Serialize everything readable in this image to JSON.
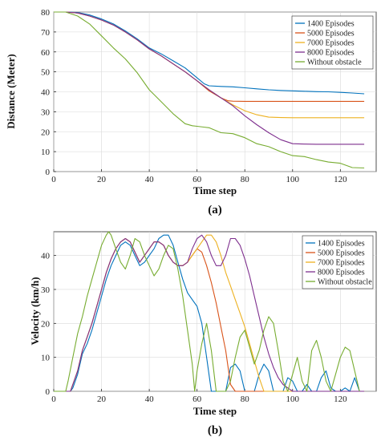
{
  "figure": {
    "caption_a": "(a)",
    "caption_b": "(b)"
  },
  "chart_data": [
    {
      "type": "line",
      "title": "",
      "xlabel": "Time step",
      "ylabel": "Distance (Meter)",
      "xlim": [
        0,
        135
      ],
      "ylim": [
        0,
        80
      ],
      "xticks": [
        0,
        20,
        40,
        60,
        80,
        100,
        120
      ],
      "yticks": [
        0,
        10,
        20,
        30,
        40,
        50,
        60,
        70,
        80
      ],
      "grid": true,
      "legend_position": "top-right",
      "series": [
        {
          "name": "1400 Episodes",
          "color": "#0072BD",
          "x": [
            0,
            5,
            10,
            15,
            20,
            25,
            30,
            35,
            40,
            45,
            50,
            55,
            60,
            63,
            65,
            70,
            75,
            80,
            85,
            90,
            95,
            100,
            105,
            110,
            115,
            120,
            125,
            130
          ],
          "y": [
            80,
            80,
            79.8,
            78.5,
            76.5,
            74,
            70.5,
            66.5,
            62,
            59,
            55.5,
            52,
            47,
            44,
            43,
            42.7,
            42.5,
            42,
            41.5,
            41,
            40.7,
            40.5,
            40.3,
            40.1,
            40,
            39.7,
            39.4,
            39
          ]
        },
        {
          "name": "5000 Episodes",
          "color": "#D95319",
          "x": [
            0,
            5,
            10,
            15,
            20,
            25,
            30,
            35,
            40,
            45,
            50,
            55,
            60,
            65,
            70,
            73,
            75,
            80,
            90,
            100,
            110,
            120,
            130
          ],
          "y": [
            80,
            80,
            79.5,
            78,
            76,
            73.5,
            70,
            66,
            61.5,
            58,
            54,
            50,
            45.5,
            40.5,
            37,
            35.5,
            35.3,
            35.2,
            35.2,
            35.2,
            35.2,
            35.2,
            35.2
          ]
        },
        {
          "name": "7000 Episodes",
          "color": "#EDB120",
          "x": [
            0,
            5,
            10,
            15,
            20,
            25,
            30,
            35,
            40,
            45,
            50,
            55,
            60,
            65,
            70,
            75,
            80,
            85,
            90,
            95,
            100,
            110,
            120,
            130
          ],
          "y": [
            80,
            80,
            79.5,
            78,
            76,
            73.5,
            70,
            66,
            61.5,
            58,
            54,
            50,
            45.5,
            41,
            37,
            33.5,
            30.5,
            28.5,
            27.3,
            27.1,
            27,
            27,
            27,
            27
          ]
        },
        {
          "name": "8000 Episodes",
          "color": "#7E2F8E",
          "x": [
            0,
            5,
            10,
            15,
            20,
            25,
            30,
            35,
            40,
            45,
            50,
            55,
            60,
            65,
            70,
            75,
            80,
            85,
            90,
            95,
            100,
            105,
            110,
            120,
            130
          ],
          "y": [
            80,
            80,
            79.5,
            78,
            76,
            73.5,
            70,
            66,
            61.5,
            58,
            54,
            50,
            45.5,
            41,
            37,
            33,
            28,
            23.5,
            19.5,
            16,
            14,
            13.8,
            13.7,
            13.7,
            13.7
          ]
        },
        {
          "name": "Without obstacle",
          "color": "#77AC30",
          "x": [
            0,
            5,
            10,
            15,
            20,
            25,
            30,
            35,
            40,
            45,
            50,
            55,
            58,
            60,
            65,
            70,
            75,
            80,
            85,
            90,
            95,
            100,
            105,
            110,
            115,
            120,
            125,
            130
          ],
          "y": [
            80,
            80,
            78,
            74,
            68,
            62,
            56.5,
            49.5,
            41,
            35,
            29,
            24,
            23,
            22.7,
            22,
            19.5,
            19,
            17,
            14,
            12.5,
            10,
            8,
            7.5,
            6,
            4.8,
            4.2,
            2,
            1.8
          ]
        }
      ]
    },
    {
      "type": "line",
      "title": "",
      "xlabel": "Time step",
      "ylabel": "Velocity (km/h)",
      "xlim": [
        0,
        135
      ],
      "ylim": [
        0,
        47
      ],
      "xticks": [
        0,
        20,
        40,
        60,
        80,
        100,
        120
      ],
      "yticks": [
        0,
        10,
        20,
        30,
        40
      ],
      "grid": true,
      "legend_position": "top-right",
      "series": [
        {
          "name": "1400 Episodes",
          "color": "#0072BD",
          "x": [
            0,
            6,
            7,
            8,
            10,
            12,
            14,
            16,
            18,
            20,
            22,
            24,
            26,
            28,
            30,
            32,
            34,
            36,
            38,
            40,
            42,
            44,
            46,
            48,
            50,
            52,
            54,
            56,
            58,
            60,
            62,
            64,
            66,
            68,
            70,
            72,
            74,
            76,
            78,
            80,
            82,
            84,
            86,
            88,
            90,
            92,
            94,
            96,
            98,
            100,
            102,
            104,
            106,
            108,
            110,
            112,
            114,
            116,
            118,
            120,
            122,
            124,
            126,
            128
          ],
          "y": [
            0,
            0,
            0,
            1,
            5,
            11,
            14,
            18,
            23,
            28,
            33,
            37,
            40,
            43,
            44,
            43,
            40,
            37,
            38,
            40,
            42,
            45,
            46,
            46,
            43,
            38,
            33,
            29,
            27,
            25,
            20,
            10,
            0,
            0,
            0,
            0,
            7,
            8,
            6,
            0,
            0,
            0,
            5,
            8,
            6,
            0,
            0,
            0,
            4,
            3,
            0,
            0,
            2,
            0,
            0,
            4,
            6,
            1,
            0,
            0,
            1,
            0,
            4,
            0
          ]
        },
        {
          "name": "5000 Episodes",
          "color": "#D95319",
          "x": [
            0,
            6,
            7,
            8,
            10,
            12,
            14,
            16,
            18,
            20,
            22,
            24,
            26,
            28,
            30,
            32,
            34,
            36,
            38,
            40,
            42,
            44,
            46,
            48,
            50,
            52,
            54,
            56,
            58,
            60,
            62,
            64,
            66,
            68,
            70,
            72,
            74,
            76,
            78,
            80,
            90,
            100,
            110,
            120,
            130
          ],
          "y": [
            0,
            0,
            0,
            2,
            6,
            12,
            16,
            20,
            25,
            30,
            35,
            39,
            42,
            44,
            45,
            44,
            41,
            38,
            40,
            42,
            44,
            44,
            43,
            40,
            38,
            37,
            37,
            38,
            40,
            42,
            41,
            37,
            32,
            26,
            19,
            12,
            2,
            0,
            0,
            0,
            0,
            0,
            0,
            0,
            0
          ]
        },
        {
          "name": "7000 Episodes",
          "color": "#EDB120",
          "x": [
            0,
            6,
            7,
            8,
            10,
            12,
            14,
            16,
            18,
            20,
            22,
            24,
            26,
            28,
            30,
            32,
            34,
            36,
            38,
            40,
            42,
            44,
            46,
            48,
            50,
            52,
            54,
            56,
            58,
            60,
            62,
            64,
            66,
            68,
            70,
            72,
            74,
            76,
            78,
            80,
            82,
            84,
            86,
            88,
            90,
            100,
            110,
            120,
            130
          ],
          "y": [
            0,
            0,
            0,
            2,
            6,
            12,
            16,
            20,
            25,
            30,
            35,
            39,
            42,
            44,
            45,
            44,
            41,
            38,
            40,
            42,
            44,
            44,
            43,
            40,
            38,
            37,
            37,
            38,
            40,
            42,
            44,
            46,
            46,
            44,
            40,
            35,
            31,
            27,
            23,
            19,
            14,
            9,
            4,
            0,
            0,
            0,
            0,
            0,
            0
          ]
        },
        {
          "name": "8000 Episodes",
          "color": "#7E2F8E",
          "x": [
            0,
            6,
            7,
            8,
            10,
            12,
            14,
            16,
            18,
            20,
            22,
            24,
            26,
            28,
            30,
            32,
            34,
            36,
            38,
            40,
            42,
            44,
            46,
            48,
            50,
            52,
            54,
            56,
            58,
            60,
            62,
            64,
            66,
            68,
            70,
            72,
            74,
            76,
            78,
            80,
            82,
            84,
            86,
            88,
            90,
            92,
            94,
            96,
            98,
            100,
            102,
            104,
            110,
            120,
            130
          ],
          "y": [
            0,
            0,
            0,
            2,
            6,
            12,
            16,
            20,
            25,
            30,
            35,
            39,
            42,
            44,
            45,
            44,
            41,
            38,
            40,
            42,
            44,
            44,
            43,
            40,
            38,
            37,
            37,
            38,
            42,
            45,
            46,
            44,
            40,
            37,
            37,
            40,
            45,
            45,
            43,
            39,
            34,
            28,
            22,
            16,
            11,
            7,
            4,
            2,
            1,
            0,
            0,
            0,
            0,
            0,
            0
          ]
        },
        {
          "name": "Without obstacle",
          "color": "#77AC30",
          "x": [
            0,
            4,
            5,
            6,
            8,
            10,
            12,
            14,
            16,
            18,
            20,
            22,
            23,
            24,
            26,
            28,
            30,
            32,
            34,
            36,
            38,
            40,
            42,
            44,
            46,
            48,
            50,
            52,
            54,
            56,
            58,
            59,
            60,
            62,
            64,
            66,
            68,
            70,
            72,
            74,
            76,
            78,
            80,
            82,
            84,
            86,
            88,
            90,
            92,
            94,
            96,
            98,
            100,
            102,
            104,
            106,
            108,
            110,
            112,
            114,
            116,
            118,
            120,
            122,
            124,
            126,
            128
          ],
          "y": [
            0,
            0,
            0,
            3,
            10,
            17,
            22,
            28,
            33,
            38,
            43,
            46,
            47,
            46,
            42,
            38,
            36,
            40,
            45,
            44,
            40,
            37,
            34,
            36,
            40,
            43,
            42,
            36,
            28,
            18,
            8,
            0,
            6,
            14,
            20,
            12,
            0,
            0,
            0,
            3,
            10,
            16,
            18,
            13,
            8,
            12,
            18,
            22,
            20,
            12,
            3,
            0,
            5,
            10,
            3,
            0,
            12,
            15,
            10,
            3,
            0,
            5,
            10,
            13,
            12,
            6,
            0
          ]
        }
      ]
    }
  ]
}
